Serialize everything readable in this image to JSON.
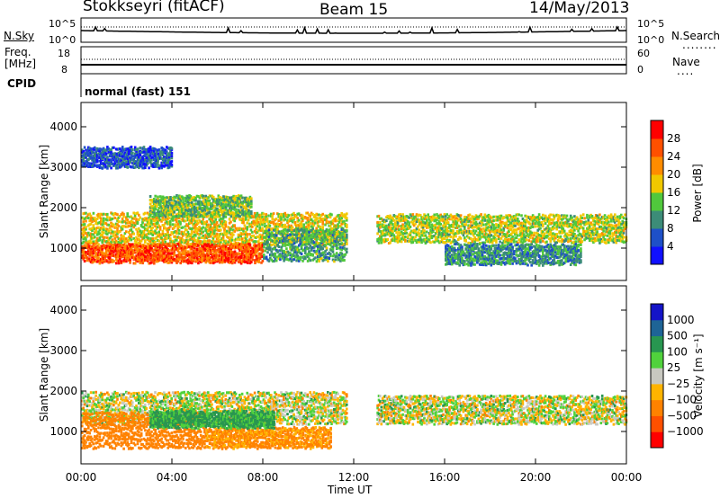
{
  "header": {
    "station": "Stokkseyri (fitACF)",
    "beam": "Beam 15",
    "date": "14/May/2013"
  },
  "panels": {
    "nsky_label": "N.Sky",
    "nsky_ticks": [
      "10^5",
      "10^0"
    ],
    "nsearch_label": "N.Search",
    "nsearch_ticks": [
      "10^5",
      "10^0"
    ],
    "freq_label": "Freq.",
    "freq_unit": "[MHz]",
    "freq_ticks": [
      "18",
      "8"
    ],
    "nave_label": "Nave",
    "nave_ticks": [
      "60",
      "0"
    ],
    "cpid_label": "CPID",
    "cpid_value": "normal (fast) 151"
  },
  "chart_data": [
    {
      "type": "heatmap",
      "name": "power",
      "ylabel": "Slant Range [km]",
      "yticks": [
        "4000",
        "3000",
        "2000",
        "1000"
      ],
      "ylim": [
        200,
        4600
      ],
      "xlim": [
        0,
        24
      ],
      "colorbar_label": "Power [dB]",
      "colorbar_ticks": [
        "28",
        "24",
        "20",
        "16",
        "12",
        "8",
        "4"
      ],
      "colors": [
        "#1010ff",
        "#1e50c8",
        "#3c8c78",
        "#50c83c",
        "#f0c800",
        "#ff8c00",
        "#ff5000",
        "#ff0000"
      ],
      "echo_bands": [
        {
          "t0": 0.0,
          "t1": 11.7,
          "r0": 1100,
          "r1": 1900,
          "level": 18
        },
        {
          "t0": 0.0,
          "t1": 8.0,
          "r0": 650,
          "r1": 1100,
          "level": 26
        },
        {
          "t0": 3.0,
          "t1": 7.5,
          "r0": 1800,
          "r1": 2300,
          "level": 14
        },
        {
          "t0": 8.0,
          "t1": 11.7,
          "r0": 700,
          "r1": 1500,
          "level": 12
        },
        {
          "t0": 13.0,
          "t1": 24.0,
          "r0": 1150,
          "r1": 1850,
          "level": 16
        },
        {
          "t0": 16.0,
          "t1": 22.0,
          "r0": 600,
          "r1": 1100,
          "level": 10
        },
        {
          "t0": 0.0,
          "t1": 4.0,
          "r0": 3000,
          "r1": 3500,
          "level": 6
        }
      ]
    },
    {
      "type": "heatmap",
      "name": "velocity",
      "ylabel": "Slant Range [km]",
      "yticks": [
        "4000",
        "3000",
        "2000",
        "1000"
      ],
      "ylim": [
        200,
        4600
      ],
      "xlim": [
        0,
        24
      ],
      "xticks": [
        "00:00",
        "04:00",
        "08:00",
        "12:00",
        "16:00",
        "20:00",
        "00:00"
      ],
      "xlabel": "Time UT",
      "colorbar_label": "Velocity [m s⁻¹]",
      "colorbar_ticks": [
        "1000",
        "500",
        "100",
        "25",
        "−25",
        "−100",
        "−500",
        "−1000"
      ],
      "colors": [
        "#1414c8",
        "#1e6496",
        "#289650",
        "#50d23c",
        "#c8c8c0",
        "#ffb400",
        "#ff8200",
        "#ff5000",
        "#ff0000"
      ],
      "echo_bands": [
        {
          "t0": 0.0,
          "t1": 11.7,
          "r0": 1200,
          "r1": 2000,
          "velocity": 0
        },
        {
          "t0": 0.0,
          "t1": 5.5,
          "r0": 600,
          "r1": 1500,
          "velocity": -300
        },
        {
          "t0": 5.5,
          "t1": 11.0,
          "r0": 600,
          "r1": 1100,
          "velocity": -150
        },
        {
          "t0": 13.0,
          "t1": 24.0,
          "r0": 1200,
          "r1": 1900,
          "velocity": 0
        },
        {
          "t0": 3.0,
          "t1": 8.5,
          "r0": 1100,
          "r1": 1500,
          "velocity": 150
        }
      ]
    }
  ]
}
